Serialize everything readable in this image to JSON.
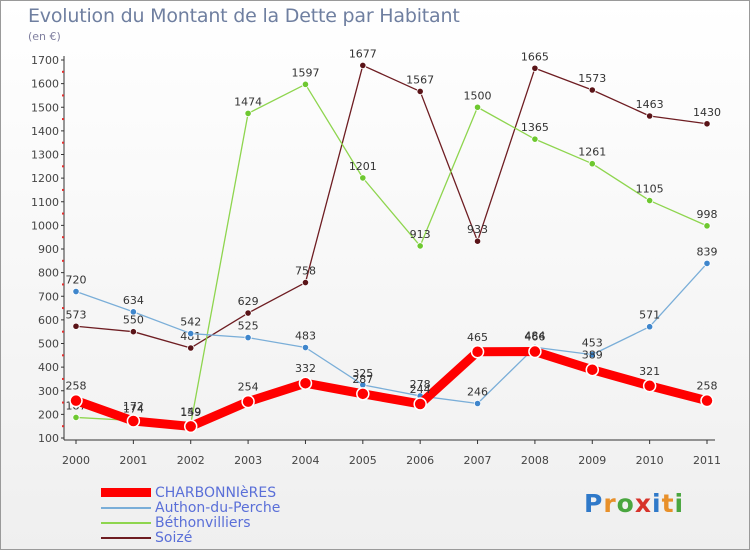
{
  "title": "Evolution du Montant de la Dette par Habitant",
  "subtitle": "(en €)",
  "logo_text": "Proxiti",
  "chart_data": {
    "type": "line",
    "title": "Evolution du Montant de la Dette par Habitant",
    "subtitle": "(en €)",
    "x": [
      "2000",
      "2001",
      "2002",
      "2003",
      "2004",
      "2005",
      "2006",
      "2007",
      "2008",
      "2009",
      "2010",
      "2011"
    ],
    "ylim": [
      100,
      1700
    ],
    "yticks": [
      100,
      200,
      300,
      400,
      500,
      600,
      700,
      800,
      900,
      1000,
      1100,
      1200,
      1300,
      1400,
      1500,
      1600,
      1700
    ],
    "grid": false,
    "legend_position": "bottom-left",
    "series": [
      {
        "name": "Soizé",
        "color": "#6e1d22",
        "marker": "#5a1418",
        "width": 1.3,
        "values": [
          573,
          550,
          481,
          629,
          758,
          1677,
          1567,
          933,
          1665,
          1573,
          1463,
          1430
        ],
        "labels": [
          "573",
          "550",
          "481",
          "629",
          "758",
          "1677",
          "1567",
          "933",
          "1665",
          "1573",
          "1463",
          "1430"
        ]
      },
      {
        "name": "Béthonvilliers",
        "color": "#8ed54e",
        "marker": "#6ec830",
        "width": 1.3,
        "values": [
          187,
          174,
          159,
          1474,
          1597,
          1201,
          913,
          1500,
          1365,
          1261,
          1105,
          998
        ],
        "labels": [
          "187",
          "174",
          "159",
          "1474",
          "1597",
          "1201",
          "913",
          "1500",
          "1365",
          "1261",
          "1105",
          "998"
        ]
      },
      {
        "name": "Authon-du-Perche",
        "color": "#7aaed8",
        "marker": "#3f86cc",
        "width": 1.3,
        "values": [
          720,
          634,
          542,
          525,
          483,
          325,
          278,
          246,
          484,
          453,
          571,
          839
        ],
        "labels": [
          "720",
          "634",
          "542",
          "525",
          "483",
          "325",
          "278",
          "246",
          "484",
          "453",
          "571",
          "839"
        ]
      },
      {
        "name": "CHARBONNIèRES",
        "color": "#ff0000",
        "marker": "#ff0000",
        "width": 9,
        "values": [
          258,
          172,
          149,
          254,
          332,
          287,
          244,
          465,
          466,
          389,
          321,
          258
        ],
        "labels": [
          "258",
          "172",
          "149",
          "254",
          "332",
          "287",
          "244",
          "465",
          "466",
          "389",
          "321",
          "258"
        ]
      }
    ],
    "legend_order": [
      "CHARBONNIèRES",
      "Authon-du-Perche",
      "Béthonvilliers",
      "Soizé"
    ]
  }
}
